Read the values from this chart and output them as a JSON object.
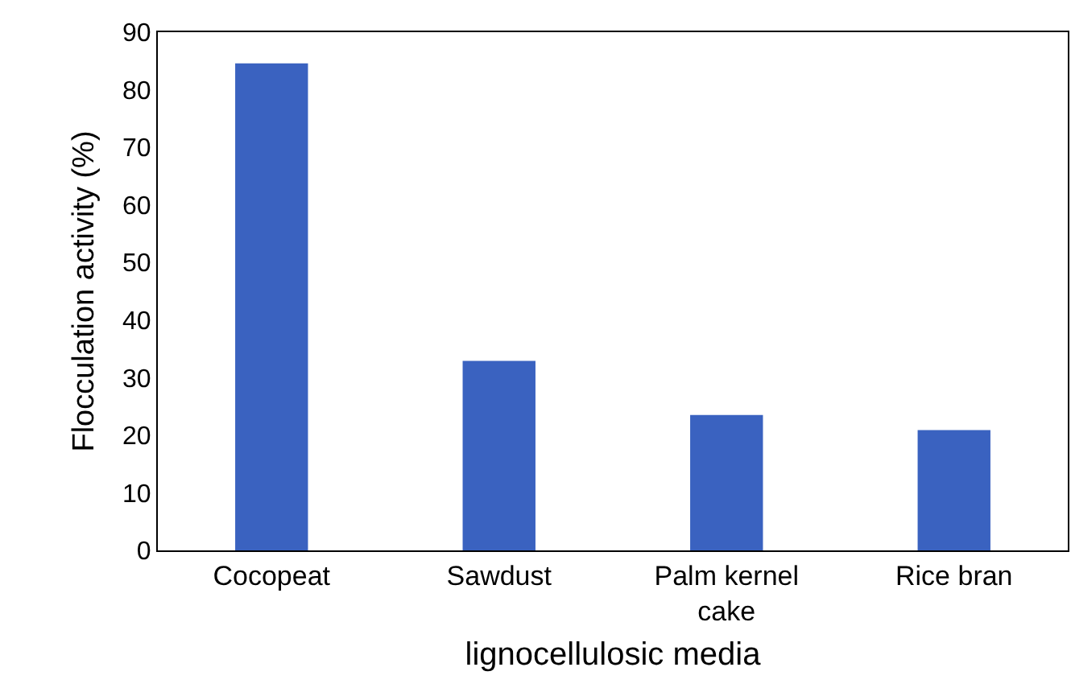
{
  "chart_data": {
    "type": "bar",
    "xlabel": "lignocellulosic media",
    "ylabel": "Flocculation activity (%)",
    "categories": [
      "Cocopeat",
      "Sawdust",
      "Palm kernel cake",
      "Rice bran"
    ],
    "values": [
      84.6,
      32.9,
      23.5,
      20.9
    ],
    "color": "#3a62c0",
    "ylim": [
      0,
      90
    ],
    "yticks": [
      0,
      10,
      20,
      30,
      40,
      50,
      60,
      70,
      80,
      90
    ],
    "grid": false
  }
}
